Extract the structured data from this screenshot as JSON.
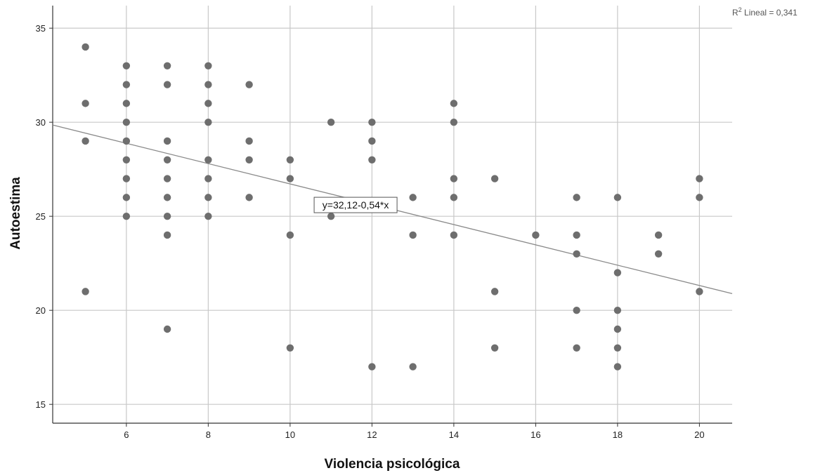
{
  "chart_data": {
    "type": "scatter",
    "xlabel": "Violencia psicológica",
    "ylabel": "Autoestima",
    "xlim": [
      4.2,
      20.8
    ],
    "ylim": [
      14,
      36.2
    ],
    "xticks": [
      6,
      8,
      10,
      12,
      14,
      16,
      18,
      20
    ],
    "yticks": [
      15,
      20,
      25,
      30,
      35
    ],
    "grid": true,
    "r2_label": {
      "prefix": "R",
      "sup": "2",
      "suffix": " Lineal = 0,341"
    },
    "fit": {
      "intercept": 32.12,
      "slope": -0.54,
      "label": "y=32,12-0,54*x"
    },
    "points": [
      [
        5,
        34
      ],
      [
        5,
        31
      ],
      [
        5,
        29
      ],
      [
        5,
        21
      ],
      [
        6,
        33
      ],
      [
        6,
        32
      ],
      [
        6,
        31
      ],
      [
        6,
        30
      ],
      [
        6,
        29
      ],
      [
        6,
        28
      ],
      [
        6,
        27
      ],
      [
        6,
        26
      ],
      [
        6,
        25
      ],
      [
        7,
        33
      ],
      [
        7,
        32
      ],
      [
        7,
        29
      ],
      [
        7,
        28
      ],
      [
        7,
        27
      ],
      [
        7,
        26
      ],
      [
        7,
        25
      ],
      [
        7,
        24
      ],
      [
        7,
        19
      ],
      [
        8,
        33
      ],
      [
        8,
        32
      ],
      [
        8,
        31
      ],
      [
        8,
        30
      ],
      [
        8,
        28
      ],
      [
        8,
        27
      ],
      [
        8,
        26
      ],
      [
        8,
        25
      ],
      [
        9,
        32
      ],
      [
        9,
        29
      ],
      [
        9,
        28
      ],
      [
        9,
        26
      ],
      [
        10,
        28
      ],
      [
        10,
        27
      ],
      [
        10,
        24
      ],
      [
        10,
        18
      ],
      [
        11,
        30
      ],
      [
        11,
        25
      ],
      [
        12,
        30
      ],
      [
        12,
        29
      ],
      [
        12,
        28
      ],
      [
        12,
        17
      ],
      [
        13,
        26
      ],
      [
        13,
        24
      ],
      [
        13,
        17
      ],
      [
        14,
        31
      ],
      [
        14,
        30
      ],
      [
        14,
        27
      ],
      [
        14,
        26
      ],
      [
        14,
        24
      ],
      [
        15,
        27
      ],
      [
        15,
        21
      ],
      [
        15,
        18
      ],
      [
        16,
        24
      ],
      [
        17,
        26
      ],
      [
        17,
        24
      ],
      [
        17,
        23
      ],
      [
        17,
        20
      ],
      [
        17,
        18
      ],
      [
        18,
        26
      ],
      [
        18,
        22
      ],
      [
        18,
        20
      ],
      [
        18,
        19
      ],
      [
        18,
        18
      ],
      [
        18,
        17
      ],
      [
        19,
        24
      ],
      [
        19,
        23
      ],
      [
        20,
        27
      ],
      [
        20,
        26
      ],
      [
        20,
        21
      ]
    ],
    "colors": {
      "point": "#6e6e6e",
      "grid": "#c8c8c8",
      "axis": "#333333",
      "fit": "#8a8a8a"
    }
  }
}
